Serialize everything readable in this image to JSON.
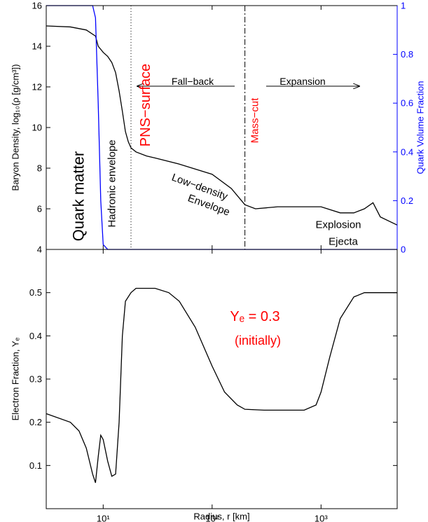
{
  "chart_data": [
    {
      "type": "line",
      "xscale": "log",
      "xlim": [
        3,
        5000
      ],
      "xticks": [
        {
          "value": 10,
          "label": "10¹"
        },
        {
          "value": 100,
          "label": "10²"
        },
        {
          "value": 1000,
          "label": "10³"
        }
      ],
      "ylim": [
        4,
        16
      ],
      "yticks": [
        4,
        6,
        8,
        10,
        12,
        14,
        16
      ],
      "y2lim": [
        0,
        1
      ],
      "y2ticks": [
        0,
        0.2,
        0.4,
        0.6,
        0.8,
        1
      ],
      "ylabel": "Baryon Density, log₁₀(ρ [g/cm³])",
      "y2label": "Quark Volume Fraction",
      "y2color": "#0000ff",
      "series": [
        {
          "color": "#000000",
          "x": [
            3,
            5,
            7,
            8.5,
            9,
            10,
            11,
            12,
            13,
            14,
            15,
            16,
            17,
            18,
            20,
            25,
            30,
            50,
            100,
            150,
            200,
            250,
            400,
            700,
            1000,
            1500,
            2000,
            2500,
            3000,
            3500,
            5000
          ],
          "values": [
            15.0,
            14.95,
            14.8,
            14.5,
            14.0,
            13.7,
            13.5,
            13.2,
            12.7,
            11.8,
            10.8,
            9.8,
            9.3,
            9.0,
            8.8,
            8.6,
            8.5,
            8.2,
            7.7,
            7.0,
            6.2,
            6.0,
            6.1,
            6.1,
            6.1,
            5.8,
            5.8,
            6.0,
            6.3,
            5.6,
            5.2
          ]
        },
        {
          "color": "#0000ff",
          "axis": "y2",
          "x": [
            3,
            8,
            8.5,
            9,
            9.5,
            10,
            11,
            5000
          ],
          "values": [
            1,
            1,
            0.95,
            0.6,
            0.2,
            0.02,
            0,
            0
          ]
        }
      ],
      "vlines": [
        {
          "value": 18,
          "style": "dotted"
        },
        {
          "value": 200,
          "style": "dashdot"
        }
      ],
      "annotations": [
        {
          "text": "Quark matter",
          "color": "#000000"
        },
        {
          "text": "Hadronic envelope",
          "color": "#000000"
        },
        {
          "text": "PNS−surface",
          "color": "#ff0000"
        },
        {
          "text": "Fall−back",
          "color": "#000000"
        },
        {
          "text": "Mass−cut",
          "color": "#ff0000"
        },
        {
          "text": "Expansion",
          "color": "#000000"
        },
        {
          "text": "Low−density",
          "color": "#000000"
        },
        {
          "text": "Envelope",
          "color": "#000000"
        },
        {
          "text": "Explosion",
          "color": "#000000"
        },
        {
          "text": "Ejecta",
          "color": "#000000"
        }
      ]
    },
    {
      "type": "line",
      "xscale": "log",
      "xlim": [
        3,
        5000
      ],
      "xticks": [
        {
          "value": 10,
          "label": "10¹"
        },
        {
          "value": 100,
          "label": "10²"
        },
        {
          "value": 1000,
          "label": "10³"
        }
      ],
      "ylim": [
        0,
        0.6
      ],
      "yticks": [
        0.1,
        0.2,
        0.3,
        0.4,
        0.5
      ],
      "xlabel": "Radius, r [km]",
      "ylabel": "Electron Fraction, Yₑ",
      "series": [
        {
          "color": "#000000",
          "x": [
            3,
            5,
            6,
            7,
            8,
            8.5,
            9,
            9.5,
            10,
            11,
            12,
            13,
            14,
            15,
            16,
            18,
            20,
            30,
            40,
            50,
            70,
            100,
            130,
            170,
            200,
            300,
            500,
            700,
            900,
            1000,
            1200,
            1500,
            2000,
            2500,
            5000
          ],
          "values": [
            0.22,
            0.2,
            0.18,
            0.14,
            0.08,
            0.06,
            0.12,
            0.17,
            0.16,
            0.11,
            0.075,
            0.08,
            0.2,
            0.4,
            0.48,
            0.5,
            0.51,
            0.51,
            0.5,
            0.48,
            0.42,
            0.33,
            0.27,
            0.24,
            0.23,
            0.228,
            0.228,
            0.228,
            0.24,
            0.27,
            0.35,
            0.44,
            0.49,
            0.5,
            0.5
          ]
        }
      ],
      "annotations": [
        {
          "text": "Yₑ = 0.3",
          "color": "#ff0000"
        },
        {
          "text": "(initially)",
          "color": "#ff0000"
        }
      ]
    }
  ]
}
